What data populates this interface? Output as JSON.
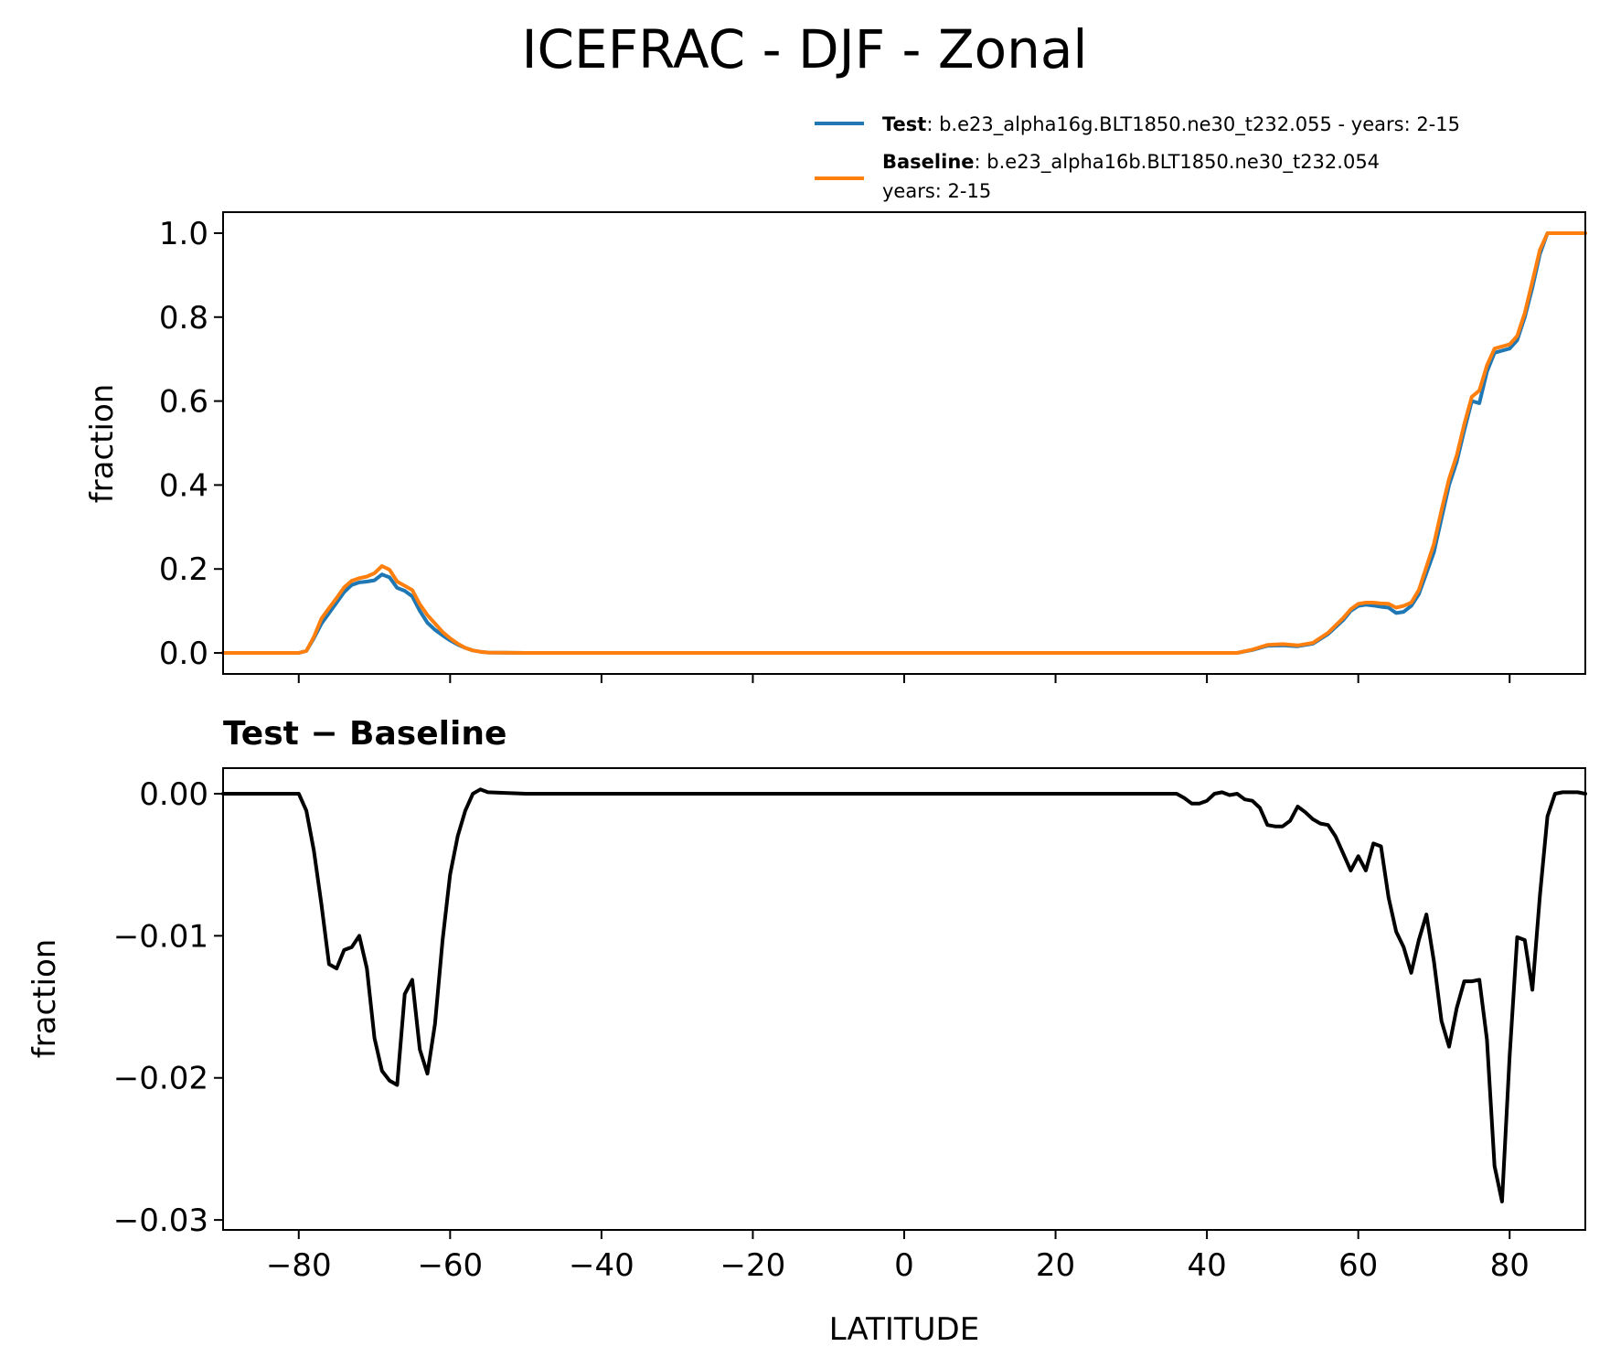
{
  "figure": {
    "title": "ICEFRAC - DJF - Zonal"
  },
  "legend": {
    "entries": [
      {
        "key": "test",
        "bold": "Test",
        "text": ": b.e23_alpha16g.BLT1850.ne30_t232.055 - years: 2-15",
        "text2": "",
        "color": "#1f77b4"
      },
      {
        "key": "baseline",
        "bold": "Baseline",
        "text": ": b.e23_alpha16b.BLT1850.ne30_t232.054",
        "text2": "years: 2-15",
        "color": "#ff7f0e"
      }
    ]
  },
  "colors": {
    "test": "#1f77b4",
    "baseline": "#ff7f0e",
    "diff": "#000000"
  },
  "chart_data": [
    {
      "type": "line",
      "title": "",
      "xlabel": "",
      "ylabel": "fraction",
      "xlim": [
        -90,
        90
      ],
      "ylim": [
        -0.05,
        1.05
      ],
      "xticks": [
        -80,
        -60,
        -40,
        -20,
        0,
        20,
        40,
        60,
        80
      ],
      "xtick_labels_shown": false,
      "yticks": [
        0.0,
        0.2,
        0.4,
        0.6,
        0.8,
        1.0
      ],
      "ytick_labels": [
        "0.0",
        "0.2",
        "0.4",
        "0.6",
        "0.8",
        "1.0"
      ],
      "grid": false,
      "legend_position": "above-right",
      "series": [
        {
          "name": "Test",
          "color": "#1f77b4",
          "x": [
            -90,
            -80,
            -79,
            -78,
            -77,
            -76,
            -75,
            -74,
            -73,
            -72,
            -71,
            -70,
            -69,
            -68,
            -67,
            -66,
            -65,
            -64,
            -63,
            -62,
            -61,
            -60,
            -59,
            -58,
            -57,
            -56,
            -55,
            -50,
            -40,
            -20,
            0,
            20,
            36,
            38,
            40,
            42,
            44,
            46,
            48,
            50,
            52,
            54,
            56,
            58,
            59,
            60,
            61,
            62,
            63,
            64,
            65,
            66,
            67,
            68,
            69,
            70,
            71,
            72,
            73,
            74,
            75,
            76,
            77,
            78,
            79,
            80,
            81,
            82,
            83,
            84,
            85,
            90
          ],
          "y": [
            0.0,
            0.0,
            0.005,
            0.035,
            0.07,
            0.095,
            0.12,
            0.145,
            0.162,
            0.168,
            0.17,
            0.173,
            0.187,
            0.18,
            0.155,
            0.148,
            0.135,
            0.1,
            0.072,
            0.055,
            0.042,
            0.03,
            0.02,
            0.012,
            0.006,
            0.003,
            0.001,
            0.0,
            0.0,
            0.0,
            0.0,
            0.0,
            0.0,
            0.0,
            0.0,
            0.0,
            0.0,
            0.007,
            0.017,
            0.018,
            0.016,
            0.022,
            0.045,
            0.078,
            0.1,
            0.112,
            0.115,
            0.113,
            0.11,
            0.108,
            0.095,
            0.098,
            0.112,
            0.14,
            0.19,
            0.24,
            0.32,
            0.4,
            0.455,
            0.53,
            0.6,
            0.595,
            0.67,
            0.715,
            0.72,
            0.725,
            0.745,
            0.8,
            0.87,
            0.95,
            1.0,
            1.0
          ]
        },
        {
          "name": "Baseline",
          "color": "#ff7f0e",
          "x": [
            -90,
            -80,
            -79,
            -78,
            -77,
            -76,
            -75,
            -74,
            -73,
            -72,
            -71,
            -70,
            -69,
            -68,
            -67,
            -66,
            -65,
            -64,
            -63,
            -62,
            -61,
            -60,
            -59,
            -58,
            -57,
            -56,
            -55,
            -50,
            -40,
            -20,
            0,
            20,
            36,
            38,
            40,
            42,
            44,
            46,
            48,
            50,
            52,
            54,
            56,
            58,
            59,
            60,
            61,
            62,
            63,
            64,
            65,
            66,
            67,
            68,
            69,
            70,
            71,
            72,
            73,
            74,
            75,
            76,
            77,
            78,
            79,
            80,
            81,
            82,
            83,
            84,
            85,
            90
          ],
          "y": [
            0.0,
            0.0,
            0.005,
            0.038,
            0.082,
            0.107,
            0.131,
            0.156,
            0.172,
            0.178,
            0.182,
            0.19,
            0.207,
            0.198,
            0.17,
            0.16,
            0.15,
            0.116,
            0.09,
            0.07,
            0.05,
            0.035,
            0.022,
            0.012,
            0.006,
            0.003,
            0.001,
            0.0,
            0.0,
            0.0,
            0.0,
            0.0,
            0.0,
            0.0,
            0.0,
            0.0,
            0.0,
            0.008,
            0.019,
            0.021,
            0.018,
            0.024,
            0.048,
            0.083,
            0.104,
            0.117,
            0.12,
            0.12,
            0.118,
            0.117,
            0.108,
            0.112,
            0.12,
            0.15,
            0.205,
            0.26,
            0.34,
            0.415,
            0.47,
            0.545,
            0.61,
            0.625,
            0.685,
            0.725,
            0.73,
            0.735,
            0.755,
            0.81,
            0.885,
            0.96,
            1.0,
            1.0
          ]
        }
      ]
    },
    {
      "type": "line",
      "title": "Test − Baseline",
      "xlabel": "LATITUDE",
      "ylabel": "fraction",
      "xlim": [
        -90,
        90
      ],
      "ylim": [
        -0.0307,
        0.0018
      ],
      "xticks": [
        -80,
        -60,
        -40,
        -20,
        0,
        20,
        40,
        60,
        80
      ],
      "xtick_labels": [
        "−80",
        "−60",
        "−40",
        "−20",
        "0",
        "20",
        "40",
        "60",
        "80"
      ],
      "xtick_labels_shown": true,
      "yticks": [
        0.0,
        -0.01,
        -0.02,
        -0.03
      ],
      "ytick_labels": [
        "0.00",
        "−0.01",
        "−0.02",
        "−0.03"
      ],
      "grid": false,
      "series": [
        {
          "name": "Test − Baseline",
          "color": "#000000",
          "x": [
            -90,
            -80,
            -79,
            -78,
            -77,
            -76,
            -75,
            -74,
            -73,
            -72,
            -71,
            -70,
            -69,
            -68,
            -67,
            -66,
            -65,
            -64,
            -63,
            -62,
            -61,
            -60,
            -59,
            -58,
            -57,
            -56,
            -55,
            -50,
            -40,
            -20,
            0,
            20,
            36,
            37,
            38,
            39,
            40,
            41,
            42,
            43,
            44,
            45,
            46,
            47,
            48,
            49,
            50,
            51,
            52,
            53,
            54,
            55,
            56,
            57,
            58,
            59,
            60,
            61,
            62,
            63,
            64,
            65,
            66,
            67,
            68,
            69,
            70,
            71,
            72,
            73,
            74,
            75,
            76,
            77,
            78,
            79,
            80,
            81,
            82,
            83,
            84,
            85,
            86,
            87,
            88,
            89,
            90
          ],
          "y": [
            0.0,
            0.0,
            -0.0012,
            -0.004,
            -0.0078,
            -0.012,
            -0.0123,
            -0.011,
            -0.0108,
            -0.01,
            -0.0123,
            -0.0172,
            -0.0195,
            -0.0202,
            -0.0205,
            -0.0141,
            -0.0131,
            -0.018,
            -0.0197,
            -0.0162,
            -0.0103,
            -0.0057,
            -0.003,
            -0.0012,
            0.0,
            0.0003,
            0.0001,
            0.0,
            0.0,
            0.0,
            0.0,
            0.0,
            0.0,
            -0.0003,
            -0.0007,
            -0.0007,
            -0.0005,
            0.0,
            0.0001,
            -0.0001,
            0.0,
            -0.0004,
            -0.0005,
            -0.001,
            -0.0022,
            -0.0023,
            -0.0023,
            -0.0019,
            -0.0009,
            -0.0013,
            -0.0018,
            -0.0021,
            -0.0022,
            -0.003,
            -0.0042,
            -0.0054,
            -0.0044,
            -0.0054,
            -0.0035,
            -0.0037,
            -0.0073,
            -0.0097,
            -0.0108,
            -0.0126,
            -0.0103,
            -0.0085,
            -0.0118,
            -0.016,
            -0.0178,
            -0.0151,
            -0.0132,
            -0.0132,
            -0.0131,
            -0.0173,
            -0.0262,
            -0.0287,
            -0.0185,
            -0.0101,
            -0.0103,
            -0.0138,
            -0.0072,
            -0.0016,
            0.0,
            0.0001,
            0.0001,
            0.0001,
            0.0
          ]
        }
      ]
    }
  ]
}
